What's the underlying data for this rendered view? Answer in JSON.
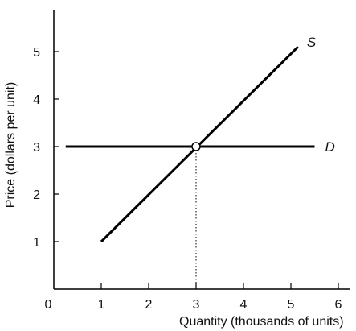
{
  "chart_data": {
    "type": "line",
    "xlabel": "Quantity (thousands of units)",
    "ylabel": "Price (dollars per unit)",
    "xlim": [
      0,
      6
    ],
    "ylim": [
      0,
      6
    ],
    "x_ticks": [
      "0",
      "1",
      "2",
      "3",
      "4",
      "5",
      "6"
    ],
    "y_ticks": [
      "1",
      "2",
      "3",
      "4",
      "5"
    ],
    "grid": false,
    "series": [
      {
        "name": "S",
        "x": [
          1,
          5.15
        ],
        "y": [
          1,
          5.1
        ]
      },
      {
        "name": "D",
        "x": [
          0.25,
          5.5
        ],
        "y": [
          3,
          3
        ]
      }
    ],
    "annotations": [
      {
        "type": "equilibrium-point",
        "x": 3,
        "y": 3
      },
      {
        "type": "dotted-line-to-x-axis",
        "x": 3,
        "y": 3
      }
    ],
    "colors": {
      "line": "#000000",
      "point_fill": "#ffffff"
    }
  }
}
